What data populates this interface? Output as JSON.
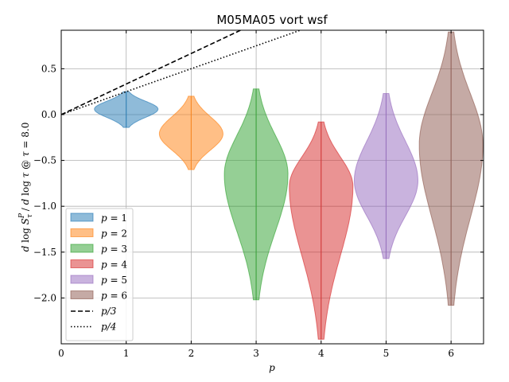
{
  "chart_data": {
    "type": "violin",
    "title": "M05MA05 vort wsf",
    "xlabel": "p",
    "ylabel": "d log S_τ^P / d log τ @ τ = 8.0",
    "xlim": [
      0,
      6.5
    ],
    "ylim": [
      -2.5,
      0.92
    ],
    "xticks": [
      0,
      1,
      2,
      3,
      4,
      5,
      6
    ],
    "yticks": [
      0.5,
      0.0,
      -0.5,
      -1.0,
      -1.5,
      -2.0
    ],
    "ytick_labels": [
      "0.5",
      "0.0",
      "−0.5",
      "−1.0",
      "−1.5",
      "−2.0"
    ],
    "grid": true,
    "legend_position": "lower left",
    "violins": [
      {
        "name": "p = 1",
        "label_var": "p",
        "label_eq": " = 1",
        "position": 1,
        "color": "#1f77b4",
        "min": -0.14,
        "max": 0.25,
        "median": 0.06
      },
      {
        "name": "p = 2",
        "label_var": "p",
        "label_eq": " = 2",
        "position": 2,
        "color": "#ff7f0e",
        "min": -0.6,
        "max": 0.2,
        "median": -0.21
      },
      {
        "name": "p = 3",
        "label_var": "p",
        "label_eq": " = 3",
        "position": 3,
        "color": "#2ca02c",
        "min": -2.02,
        "max": 0.28,
        "median": -0.65
      },
      {
        "name": "p = 4",
        "label_var": "p",
        "label_eq": " = 4",
        "position": 4,
        "color": "#d62728",
        "min": -2.45,
        "max": -0.08,
        "median": -0.78
      },
      {
        "name": "p = 5",
        "label_var": "p",
        "label_eq": " = 5",
        "position": 5,
        "color": "#9467bd",
        "min": -1.57,
        "max": 0.23,
        "median": -0.72
      },
      {
        "name": "p = 6",
        "label_var": "p",
        "label_eq": " = 6",
        "position": 6,
        "color": "#8c564b",
        "min": -2.08,
        "max": 0.9,
        "median": -0.33
      }
    ],
    "lines": [
      {
        "name": "p/3",
        "formula": "y = x/3",
        "slope": 0.3333,
        "style": "dashed",
        "color": "#000000"
      },
      {
        "name": "p/4",
        "formula": "y = x/4",
        "slope": 0.25,
        "style": "dotted",
        "color": "#000000"
      }
    ]
  }
}
